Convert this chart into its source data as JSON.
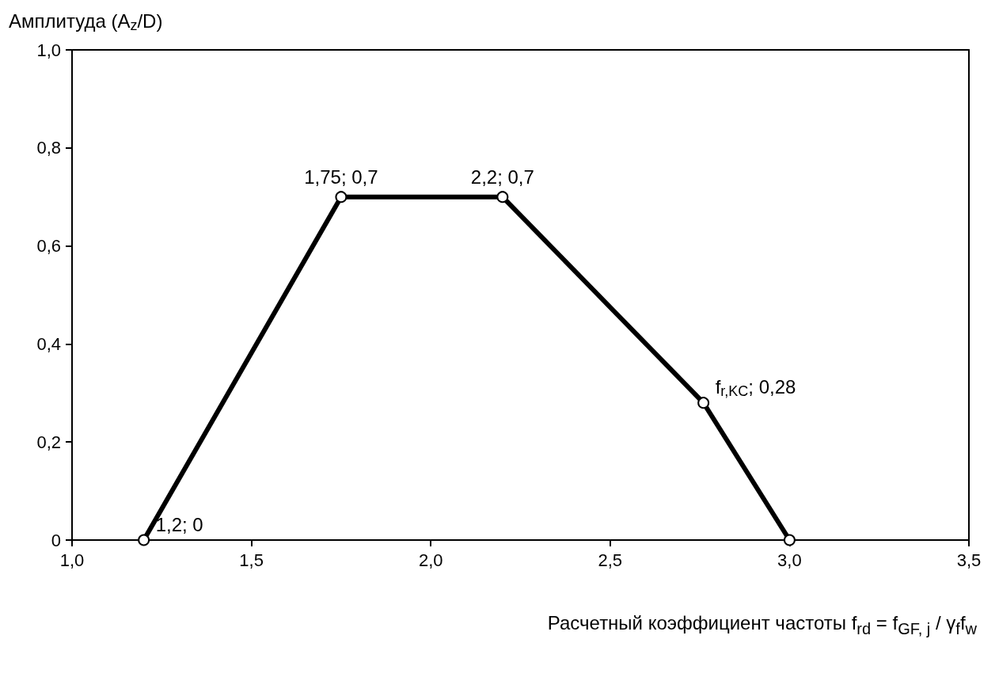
{
  "chart_data": {
    "type": "line",
    "xlabel": "Расчетный коэффициент частоты f$_{rd}$ = f$_{GF, j}$ / γ$_{f}$f$_{w}$",
    "ylabel": "Амплитуда (A$_{z}$/D)",
    "x": [
      1.2,
      1.75,
      2.2,
      2.76,
      3.0
    ],
    "series": [
      {
        "color": "#000000",
        "values": [
          0,
          0.7,
          0.7,
          0.28,
          0
        ]
      }
    ],
    "xlim": [
      1.0,
      3.5
    ],
    "xticks": [
      {
        "value": 1.0,
        "label": "1,0"
      },
      {
        "value": 1.5,
        "label": "1,5"
      },
      {
        "value": 2.0,
        "label": "2,0"
      },
      {
        "value": 2.5,
        "label": "2,5"
      },
      {
        "value": 3.0,
        "label": "3,0"
      },
      {
        "value": 3.5,
        "label": "3,5"
      }
    ],
    "ylim": [
      0,
      1.0
    ],
    "yticks": [
      0,
      {
        "value": 0.2,
        "label": "0,2"
      },
      {
        "value": 0.4,
        "label": "0,4"
      },
      {
        "value": 0.6,
        "label": "0,6"
      },
      {
        "value": 0.8,
        "label": "0,8"
      },
      {
        "value": 1.0,
        "label": "1,0"
      }
    ],
    "annotations": [
      {
        "text": "1,2; 0",
        "x": 1.2,
        "y": 0
      },
      {
        "text": "1,75; 0,7",
        "x": 1.75,
        "y": 0.7
      },
      {
        "text": "2,2; 0,7",
        "x": 2.2,
        "y": 0.7
      },
      {
        "text": "f$_{r,KC}$; 0,28",
        "x": 2.76,
        "y": 0.28
      }
    ],
    "grid": false,
    "marker": "circle",
    "line_style": "solid"
  }
}
